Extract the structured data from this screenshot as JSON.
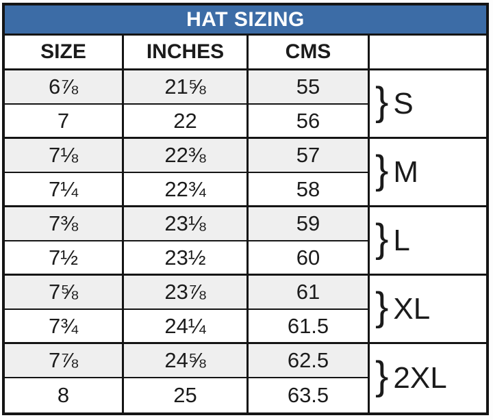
{
  "colors": {
    "title_bar_bg": "#3c6ca6",
    "title_text": "#ffffff",
    "alt_row_bg": "#efefef",
    "border": "#141414"
  },
  "chart_data": {
    "type": "table",
    "title": "HAT SIZING",
    "columns": [
      "SIZE",
      "INCHES",
      "CMS",
      ""
    ],
    "rows": [
      {
        "size": "6⅞",
        "inches": "21⅝",
        "cms": "55"
      },
      {
        "size": "7",
        "inches": "22",
        "cms": "56"
      },
      {
        "size": "7⅛",
        "inches": "22⅜",
        "cms": "57"
      },
      {
        "size": "7¼",
        "inches": "22¾",
        "cms": "58"
      },
      {
        "size": "7⅜",
        "inches": "23⅛",
        "cms": "59"
      },
      {
        "size": "7½",
        "inches": "23½",
        "cms": "60"
      },
      {
        "size": "7⅝",
        "inches": "23⅞",
        "cms": "61"
      },
      {
        "size": "7¾",
        "inches": "24¼",
        "cms": "61.5"
      },
      {
        "size": "7⅞",
        "inches": "24⅝",
        "cms": "62.5"
      },
      {
        "size": "8",
        "inches": "25",
        "cms": "63.5"
      }
    ],
    "groups": [
      {
        "brace": "}",
        "label": "S",
        "row_span": [
          1,
          2
        ]
      },
      {
        "brace": "}",
        "label": "M",
        "row_span": [
          3,
          4
        ]
      },
      {
        "brace": "}",
        "label": "L",
        "row_span": [
          5,
          6
        ]
      },
      {
        "brace": "}",
        "label": "XL",
        "row_span": [
          7,
          8
        ]
      },
      {
        "brace": "}",
        "label": "2XL",
        "row_span": [
          9,
          10
        ]
      }
    ]
  }
}
